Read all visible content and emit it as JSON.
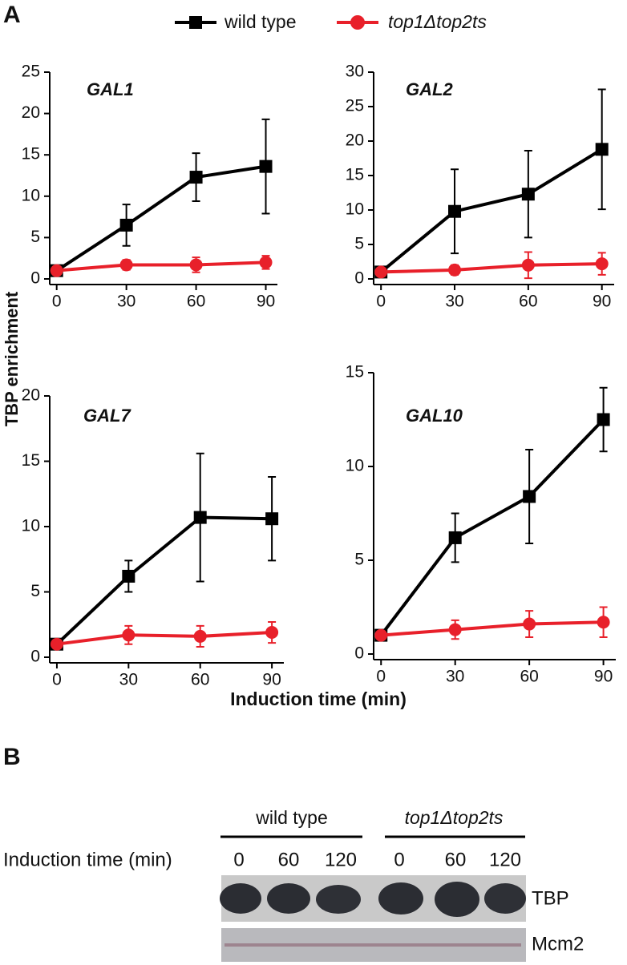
{
  "panel_labels": [
    "A",
    "B"
  ],
  "ylabel": "TBP enrichment",
  "xlabel": "Induction time (min)",
  "chart_data": [
    {
      "type": "line",
      "title": "GAL1",
      "x": [
        0,
        30,
        60,
        90
      ],
      "xlim": [
        -3,
        95
      ],
      "xticks": [
        0,
        30,
        60,
        90
      ],
      "ylim": [
        0,
        25
      ],
      "yticks": [
        0,
        5,
        10,
        15,
        20,
        25
      ],
      "grid": false,
      "series": [
        {
          "name": "wild type",
          "color": "#000000",
          "marker": "square",
          "values": [
            1,
            6.5,
            12.3,
            13.6
          ],
          "errors": [
            0,
            2.5,
            2.9,
            5.7
          ]
        },
        {
          "name": "top1Δtop2ts",
          "color": "#e8202a",
          "marker": "circle",
          "values": [
            1,
            1.7,
            1.7,
            2.0
          ],
          "errors": [
            0,
            0.6,
            0.9,
            0.8
          ]
        }
      ]
    },
    {
      "type": "line",
      "title": "GAL2",
      "x": [
        0,
        30,
        60,
        90
      ],
      "xlim": [
        -3,
        95
      ],
      "xticks": [
        0,
        30,
        60,
        90
      ],
      "ylim": [
        0,
        30
      ],
      "yticks": [
        0,
        5,
        10,
        15,
        20,
        25,
        30
      ],
      "grid": false,
      "series": [
        {
          "name": "wild type",
          "color": "#000000",
          "marker": "square",
          "values": [
            1,
            9.8,
            12.3,
            18.8
          ],
          "errors": [
            0,
            6.1,
            6.3,
            8.7
          ]
        },
        {
          "name": "top1Δtop2ts",
          "color": "#e8202a",
          "marker": "circle",
          "values": [
            1,
            1.3,
            2.0,
            2.2
          ],
          "errors": [
            0,
            0.7,
            1.9,
            1.6
          ]
        }
      ]
    },
    {
      "type": "line",
      "title": "GAL7",
      "x": [
        0,
        30,
        60,
        90
      ],
      "xlim": [
        -3,
        95
      ],
      "xticks": [
        0,
        30,
        60,
        90
      ],
      "ylim": [
        0,
        20
      ],
      "yticks": [
        0,
        5,
        10,
        15,
        20
      ],
      "grid": false,
      "series": [
        {
          "name": "wild type",
          "color": "#000000",
          "marker": "square",
          "values": [
            1,
            6.2,
            10.7,
            10.6
          ],
          "errors": [
            0,
            1.2,
            4.9,
            3.2
          ]
        },
        {
          "name": "top1Δtop2ts",
          "color": "#e8202a",
          "marker": "circle",
          "values": [
            1,
            1.7,
            1.6,
            1.9
          ],
          "errors": [
            0,
            0.7,
            0.8,
            0.8
          ]
        }
      ]
    },
    {
      "type": "line",
      "title": "GAL10",
      "x": [
        0,
        30,
        60,
        90
      ],
      "xlim": [
        -3,
        95
      ],
      "xticks": [
        0,
        30,
        60,
        90
      ],
      "ylim": [
        0,
        15
      ],
      "yticks": [
        0,
        5,
        10,
        15
      ],
      "grid": false,
      "series": [
        {
          "name": "wild type",
          "color": "#000000",
          "marker": "square",
          "values": [
            1,
            6.2,
            8.4,
            12.5
          ],
          "errors": [
            0,
            1.3,
            2.5,
            1.7
          ]
        },
        {
          "name": "top1Δtop2ts",
          "color": "#e8202a",
          "marker": "circle",
          "values": [
            1,
            1.3,
            1.6,
            1.7
          ],
          "errors": [
            0,
            0.5,
            0.7,
            0.8
          ]
        }
      ]
    }
  ],
  "blot": {
    "groups": [
      "wild type",
      "top1Δtop2ts"
    ],
    "row_label": "Induction time (min)",
    "lanes": [
      0,
      60,
      120,
      0,
      60,
      120
    ],
    "bands": [
      "TBP",
      "Mcm2"
    ]
  }
}
